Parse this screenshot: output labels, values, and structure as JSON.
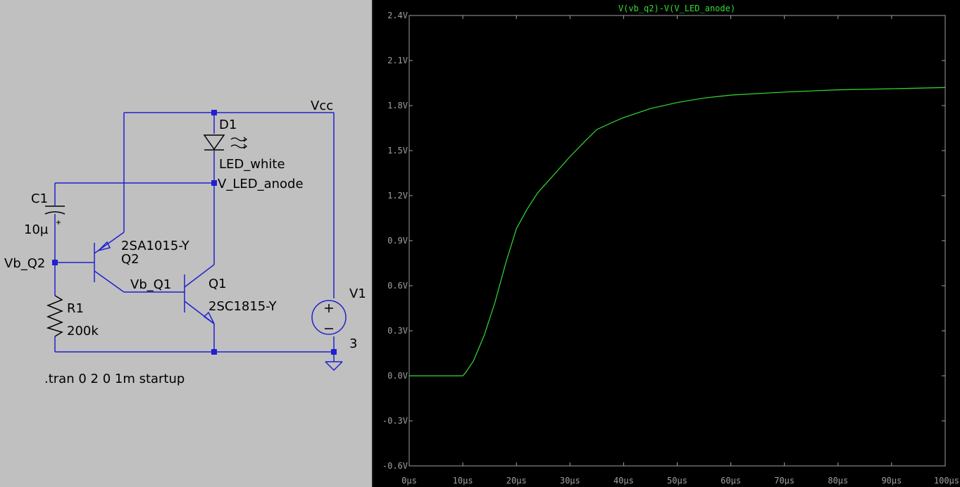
{
  "schematic": {
    "wire_color": "#2020d0",
    "labels": {
      "vcc": "Vcc",
      "d1_name": "D1",
      "d1_value": "LED_white",
      "led_anode_net": "V_LED_anode",
      "c1_name": "C1",
      "c1_value": "10µ",
      "q2_value": "2SA1015-Y",
      "q2_name": "Q2",
      "vb_q2_net": "Vb_Q2",
      "vb_q1_net": "Vb_Q1",
      "q1_name": "Q1",
      "q1_value": "2SC1815-Y",
      "r1_name": "R1",
      "r1_value": "200k",
      "v1_name": "V1",
      "v1_value": "3",
      "directive": ".tran 0 2 0 1m startup"
    }
  },
  "plot": {
    "title": "V(vb_q2)-V(V_LED_anode)",
    "trace_color": "#33dd33",
    "y_ticks": [
      "2.4V",
      "2.1V",
      "1.8V",
      "1.5V",
      "1.2V",
      "0.9V",
      "0.6V",
      "0.3V",
      "0.0V",
      "-0.3V",
      "-0.6V"
    ],
    "x_ticks": [
      "0µs",
      "10µs",
      "20µs",
      "30µs",
      "40µs",
      "50µs",
      "60µs",
      "70µs",
      "80µs",
      "90µs",
      "100µs"
    ]
  },
  "chart_data": {
    "type": "line",
    "title": "V(vb_q2)-V(V_LED_anode)",
    "xlabel": "",
    "ylabel": "",
    "xlim": [
      0,
      100
    ],
    "ylim": [
      -0.6,
      2.4
    ],
    "x_unit": "µs",
    "y_unit": "V",
    "grid": false,
    "series": [
      {
        "name": "V(vb_q2)-V(V_LED_anode)",
        "x": [
          0,
          10,
          10.5,
          12,
          14,
          16,
          18,
          20,
          22,
          24,
          26,
          28,
          30,
          33,
          35,
          38,
          40,
          45,
          50,
          55,
          60,
          70,
          80,
          90,
          100
        ],
        "y": [
          0.0,
          0.0,
          0.02,
          0.1,
          0.27,
          0.49,
          0.75,
          0.98,
          1.11,
          1.22,
          1.3,
          1.38,
          1.46,
          1.57,
          1.64,
          1.69,
          1.72,
          1.78,
          1.82,
          1.85,
          1.87,
          1.89,
          1.905,
          1.912,
          1.92
        ]
      }
    ]
  }
}
